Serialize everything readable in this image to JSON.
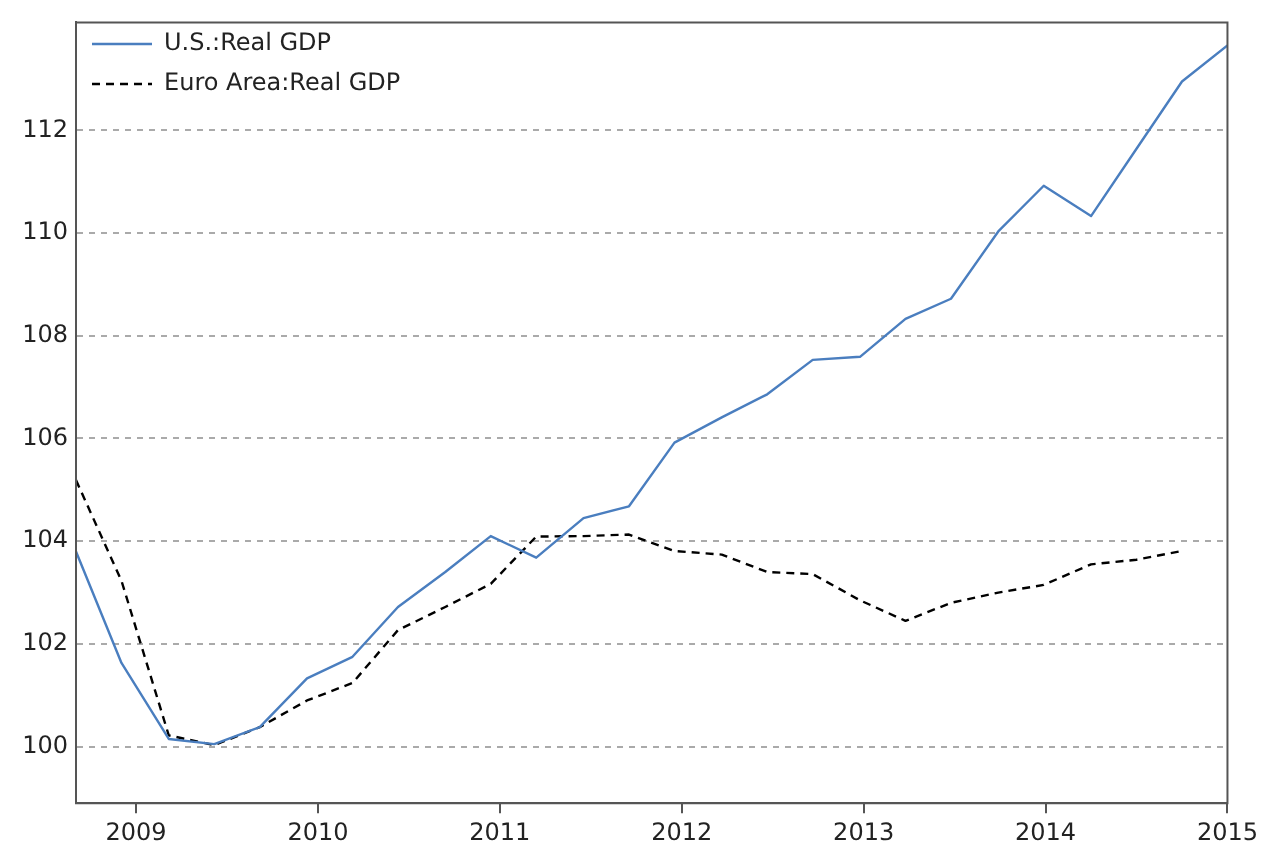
{
  "chart_data": {
    "type": "line",
    "x": [
      2008.67,
      2008.92,
      2009.18,
      2009.43,
      2009.68,
      2009.94,
      2010.19,
      2010.44,
      2010.7,
      2010.95,
      2011.2,
      2011.46,
      2011.71,
      2011.96,
      2012.22,
      2012.47,
      2012.72,
      2012.98,
      2013.23,
      2013.48,
      2013.74,
      2013.99,
      2014.25,
      2014.5,
      2014.75,
      2015.0
    ],
    "series": [
      {
        "name": "U.S.:Real GDP",
        "color": "#4a7ebf",
        "line_style": "solid",
        "values": [
          103.8,
          101.63,
          100.15,
          100.05,
          100.38,
          101.33,
          101.75,
          102.72,
          103.4,
          104.1,
          103.68,
          104.45,
          104.68,
          105.92,
          106.41,
          106.86,
          107.53,
          107.59,
          108.33,
          108.72,
          110.03,
          110.92,
          110.33,
          111.64,
          112.95,
          113.65
        ]
      },
      {
        "name": "Euro Area:Real GDP",
        "color": "#000000",
        "line_style": "dashed",
        "values": [
          105.19,
          103.23,
          100.22,
          100.03,
          100.38,
          100.9,
          101.24,
          102.27,
          102.72,
          103.17,
          104.09,
          104.1,
          104.13,
          103.81,
          103.74,
          103.4,
          103.36,
          102.85,
          102.45,
          102.8,
          103.0,
          103.15,
          103.55,
          103.64,
          103.81,
          null
        ]
      }
    ],
    "xlim": [
      2008.67,
      2015
    ],
    "xticks": [
      2009,
      2010,
      2011,
      2012,
      2013,
      2014,
      2015
    ],
    "ylim": [
      98.9,
      114.1
    ],
    "yticks": [
      100,
      102,
      104,
      106,
      108,
      110,
      112
    ],
    "grid": "y",
    "legend": "top left",
    "marker": "none"
  }
}
